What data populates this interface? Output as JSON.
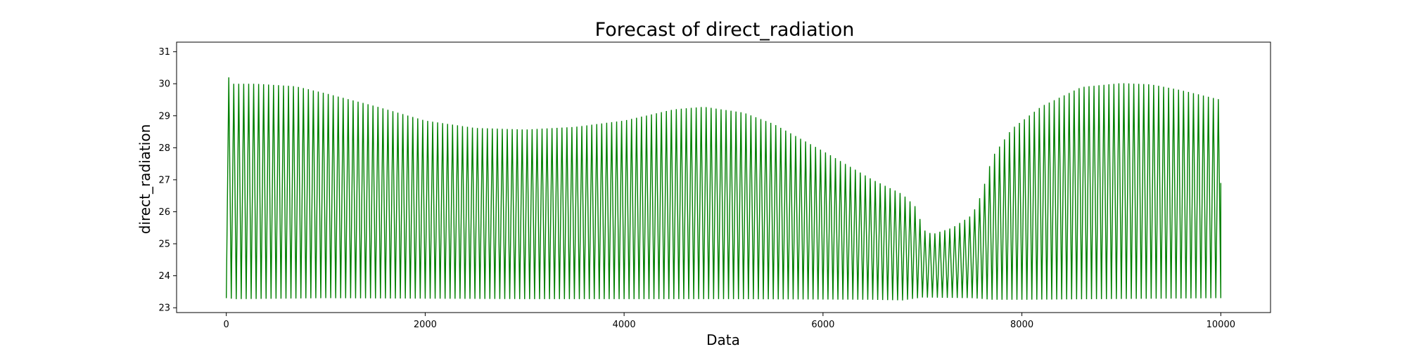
{
  "chart_data": {
    "type": "line",
    "title": "Forecast of direct_radiation",
    "xlabel": "Data",
    "ylabel": "direct_radiation",
    "xlim": [
      -500,
      10500
    ],
    "ylim": [
      22.85,
      31.3
    ],
    "xticks": [
      0,
      2000,
      4000,
      6000,
      8000,
      10000
    ],
    "yticks": [
      23,
      24,
      25,
      26,
      27,
      28,
      29,
      30,
      31
    ],
    "grid": false,
    "legend": "none",
    "series": [
      {
        "color": "#008000",
        "style": "dense oscillation (period ~50 points) between a lower and upper envelope",
        "upper_envelope": {
          "x": [
            0,
            25,
            60,
            100,
            300,
            700,
            1000,
            1500,
            2000,
            2500,
            3000,
            3500,
            4000,
            4500,
            4800,
            5200,
            5500,
            6000,
            6500,
            6800,
            6950,
            7000,
            7100,
            7300,
            7500,
            7600,
            7700,
            7900,
            8200,
            8600,
            9000,
            9300,
            9600,
            10000
          ],
          "y": [
            30.9,
            30.2,
            30.0,
            30.0,
            30.0,
            29.92,
            29.7,
            29.3,
            28.85,
            28.62,
            28.57,
            28.65,
            28.85,
            29.2,
            29.28,
            29.1,
            28.75,
            27.9,
            27.0,
            26.55,
            26.1,
            25.45,
            25.3,
            25.5,
            25.9,
            26.6,
            27.7,
            28.6,
            29.3,
            29.9,
            30.02,
            29.98,
            29.8,
            29.5
          ]
        },
        "lower_envelope": {
          "x": [
            0,
            100,
            1000,
            3000,
            5000,
            6500,
            6800,
            7000,
            7500,
            7700,
            8000,
            10000
          ],
          "y": [
            23.3,
            23.27,
            23.3,
            23.27,
            23.27,
            23.25,
            23.23,
            23.32,
            23.3,
            23.25,
            23.25,
            23.3
          ]
        },
        "last_value": 26.9
      }
    ]
  }
}
